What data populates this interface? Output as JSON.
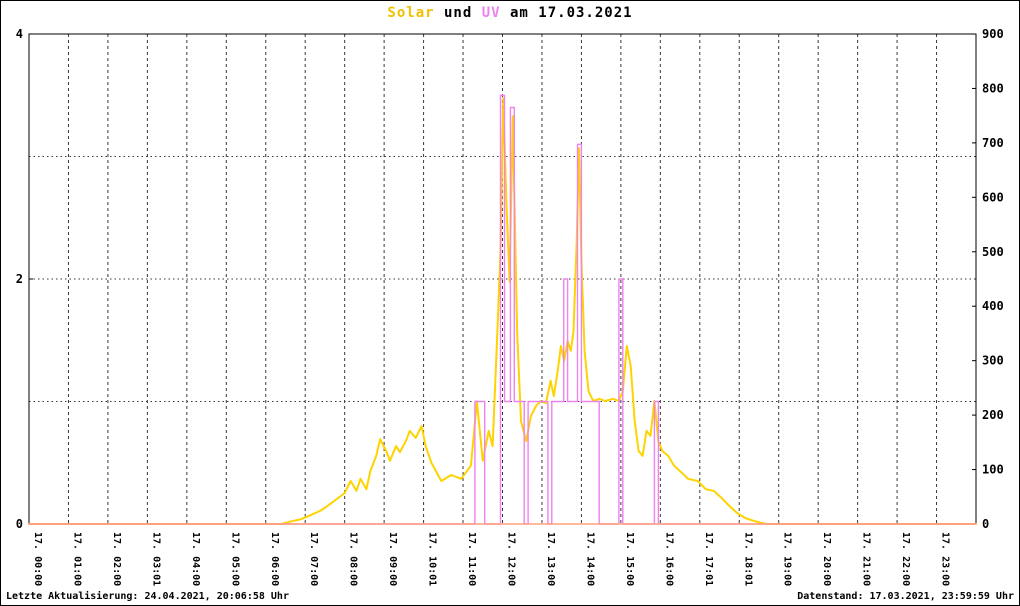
{
  "title": {
    "parts": [
      {
        "text": "Solar",
        "color": "#f0c000"
      },
      {
        "text": " und ",
        "color": "#000000"
      },
      {
        "text": "UV",
        "color": "#ee82ee"
      },
      {
        "text": " am 17.03.2021",
        "color": "#000000"
      }
    ]
  },
  "footer": {
    "left": "Letzte Aktualisierung: 24.04.2021, 20:06:58 Uhr",
    "right": "Datenstand: 17.03.2021, 23:59:59 Uhr"
  },
  "chart_data": {
    "type": "line",
    "title": "Solar und UV am 17.03.2021",
    "background": "#ffffff",
    "legend_position": "none",
    "grid": {
      "vertical": "dashed-hourly",
      "horizontal": "dotted-every-1-uv"
    },
    "x_axis": {
      "min_hour": 0,
      "max_hour": 24,
      "tick_labels": [
        "17. 00:00",
        "17. 01:00",
        "17. 02:00",
        "17. 03:01",
        "17. 04:00",
        "17. 05:00",
        "17. 06:00",
        "17. 07:00",
        "17. 08:00",
        "17. 09:00",
        "17. 10:01",
        "17. 11:00",
        "17. 12:00",
        "17. 13:00",
        "17. 14:00",
        "17. 15:00",
        "17. 16:00",
        "17. 17:01",
        "17. 18:01",
        "17. 19:00",
        "17. 20:00",
        "17. 21:00",
        "17. 22:00",
        "17. 23:00"
      ]
    },
    "y_left_axis": {
      "min": 0,
      "max": 4,
      "labeled_ticks": [
        0,
        2,
        4
      ],
      "gridline_step": 1
    },
    "y_right_axis": {
      "min": 0,
      "max": 900,
      "labeled_ticks": [
        900,
        800,
        700,
        600,
        500,
        400,
        300,
        200,
        100,
        0
      ]
    },
    "series": [
      {
        "name": "Solar",
        "color": "#ffd300",
        "axis": "right",
        "style": "line",
        "width": 2,
        "points": [
          [
            0,
            0
          ],
          [
            6.4,
            0
          ],
          [
            6.6,
            4
          ],
          [
            6.9,
            9
          ],
          [
            7.1,
            15
          ],
          [
            7.4,
            25
          ],
          [
            7.6,
            35
          ],
          [
            7.8,
            46
          ],
          [
            8.0,
            57
          ],
          [
            8.15,
            79
          ],
          [
            8.3,
            61
          ],
          [
            8.4,
            83
          ],
          [
            8.55,
            64
          ],
          [
            8.65,
            97
          ],
          [
            8.8,
            125
          ],
          [
            8.9,
            156
          ],
          [
            9.05,
            134
          ],
          [
            9.15,
            116
          ],
          [
            9.3,
            143
          ],
          [
            9.4,
            132
          ],
          [
            9.55,
            152
          ],
          [
            9.65,
            171
          ],
          [
            9.8,
            158
          ],
          [
            9.95,
            180
          ],
          [
            10.05,
            143
          ],
          [
            10.2,
            112
          ],
          [
            10.45,
            79
          ],
          [
            10.7,
            90
          ],
          [
            10.95,
            83
          ],
          [
            11.2,
            107
          ],
          [
            11.35,
            225
          ],
          [
            11.5,
            116
          ],
          [
            11.65,
            171
          ],
          [
            11.75,
            143
          ],
          [
            11.85,
            318
          ],
          [
            11.95,
            500
          ],
          [
            12.02,
            782
          ],
          [
            12.1,
            590
          ],
          [
            12.18,
            445
          ],
          [
            12.26,
            749
          ],
          [
            12.37,
            354
          ],
          [
            12.47,
            189
          ],
          [
            12.6,
            152
          ],
          [
            12.72,
            198
          ],
          [
            12.85,
            217
          ],
          [
            12.97,
            226
          ],
          [
            13.1,
            222
          ],
          [
            13.22,
            263
          ],
          [
            13.3,
            235
          ],
          [
            13.4,
            281
          ],
          [
            13.48,
            327
          ],
          [
            13.56,
            299
          ],
          [
            13.65,
            336
          ],
          [
            13.73,
            318
          ],
          [
            13.8,
            354
          ],
          [
            13.88,
            520
          ],
          [
            13.94,
            690
          ],
          [
            14.0,
            483
          ],
          [
            14.08,
            318
          ],
          [
            14.18,
            244
          ],
          [
            14.3,
            226
          ],
          [
            14.45,
            230
          ],
          [
            14.6,
            226
          ],
          [
            14.8,
            230
          ],
          [
            14.95,
            226
          ],
          [
            15.05,
            244
          ],
          [
            15.15,
            327
          ],
          [
            15.25,
            290
          ],
          [
            15.35,
            189
          ],
          [
            15.45,
            134
          ],
          [
            15.55,
            125
          ],
          [
            15.65,
            171
          ],
          [
            15.75,
            162
          ],
          [
            15.85,
            226
          ],
          [
            15.95,
            152
          ],
          [
            16.05,
            134
          ],
          [
            16.2,
            125
          ],
          [
            16.35,
            107
          ],
          [
            16.5,
            97
          ],
          [
            16.7,
            83
          ],
          [
            16.95,
            79
          ],
          [
            17.15,
            64
          ],
          [
            17.35,
            61
          ],
          [
            17.55,
            48
          ],
          [
            17.75,
            33
          ],
          [
            17.95,
            20
          ],
          [
            18.15,
            11
          ],
          [
            18.35,
            6
          ],
          [
            18.55,
            2
          ],
          [
            18.7,
            0
          ],
          [
            24,
            0
          ]
        ]
      },
      {
        "name": "UV",
        "color": "#ee82ee",
        "axis": "left",
        "style": "step",
        "width": 1.4,
        "points": [
          [
            0,
            0
          ],
          [
            11.3,
            1
          ],
          [
            11.55,
            0
          ],
          [
            11.95,
            3.5
          ],
          [
            12.05,
            1
          ],
          [
            12.2,
            3.4
          ],
          [
            12.3,
            1
          ],
          [
            12.55,
            0
          ],
          [
            12.65,
            1
          ],
          [
            13.15,
            0
          ],
          [
            13.25,
            1
          ],
          [
            13.55,
            2
          ],
          [
            13.65,
            1
          ],
          [
            13.9,
            3.1
          ],
          [
            14.0,
            1
          ],
          [
            14.45,
            0
          ],
          [
            14.95,
            2
          ],
          [
            15.05,
            0
          ],
          [
            15.85,
            1
          ],
          [
            15.95,
            0
          ],
          [
            24,
            0
          ]
        ]
      },
      {
        "name": "baseline",
        "color": "#ffa07a",
        "axis": "left",
        "style": "line",
        "width": 1.6,
        "points": [
          [
            0,
            0
          ],
          [
            24,
            0
          ]
        ]
      }
    ]
  }
}
